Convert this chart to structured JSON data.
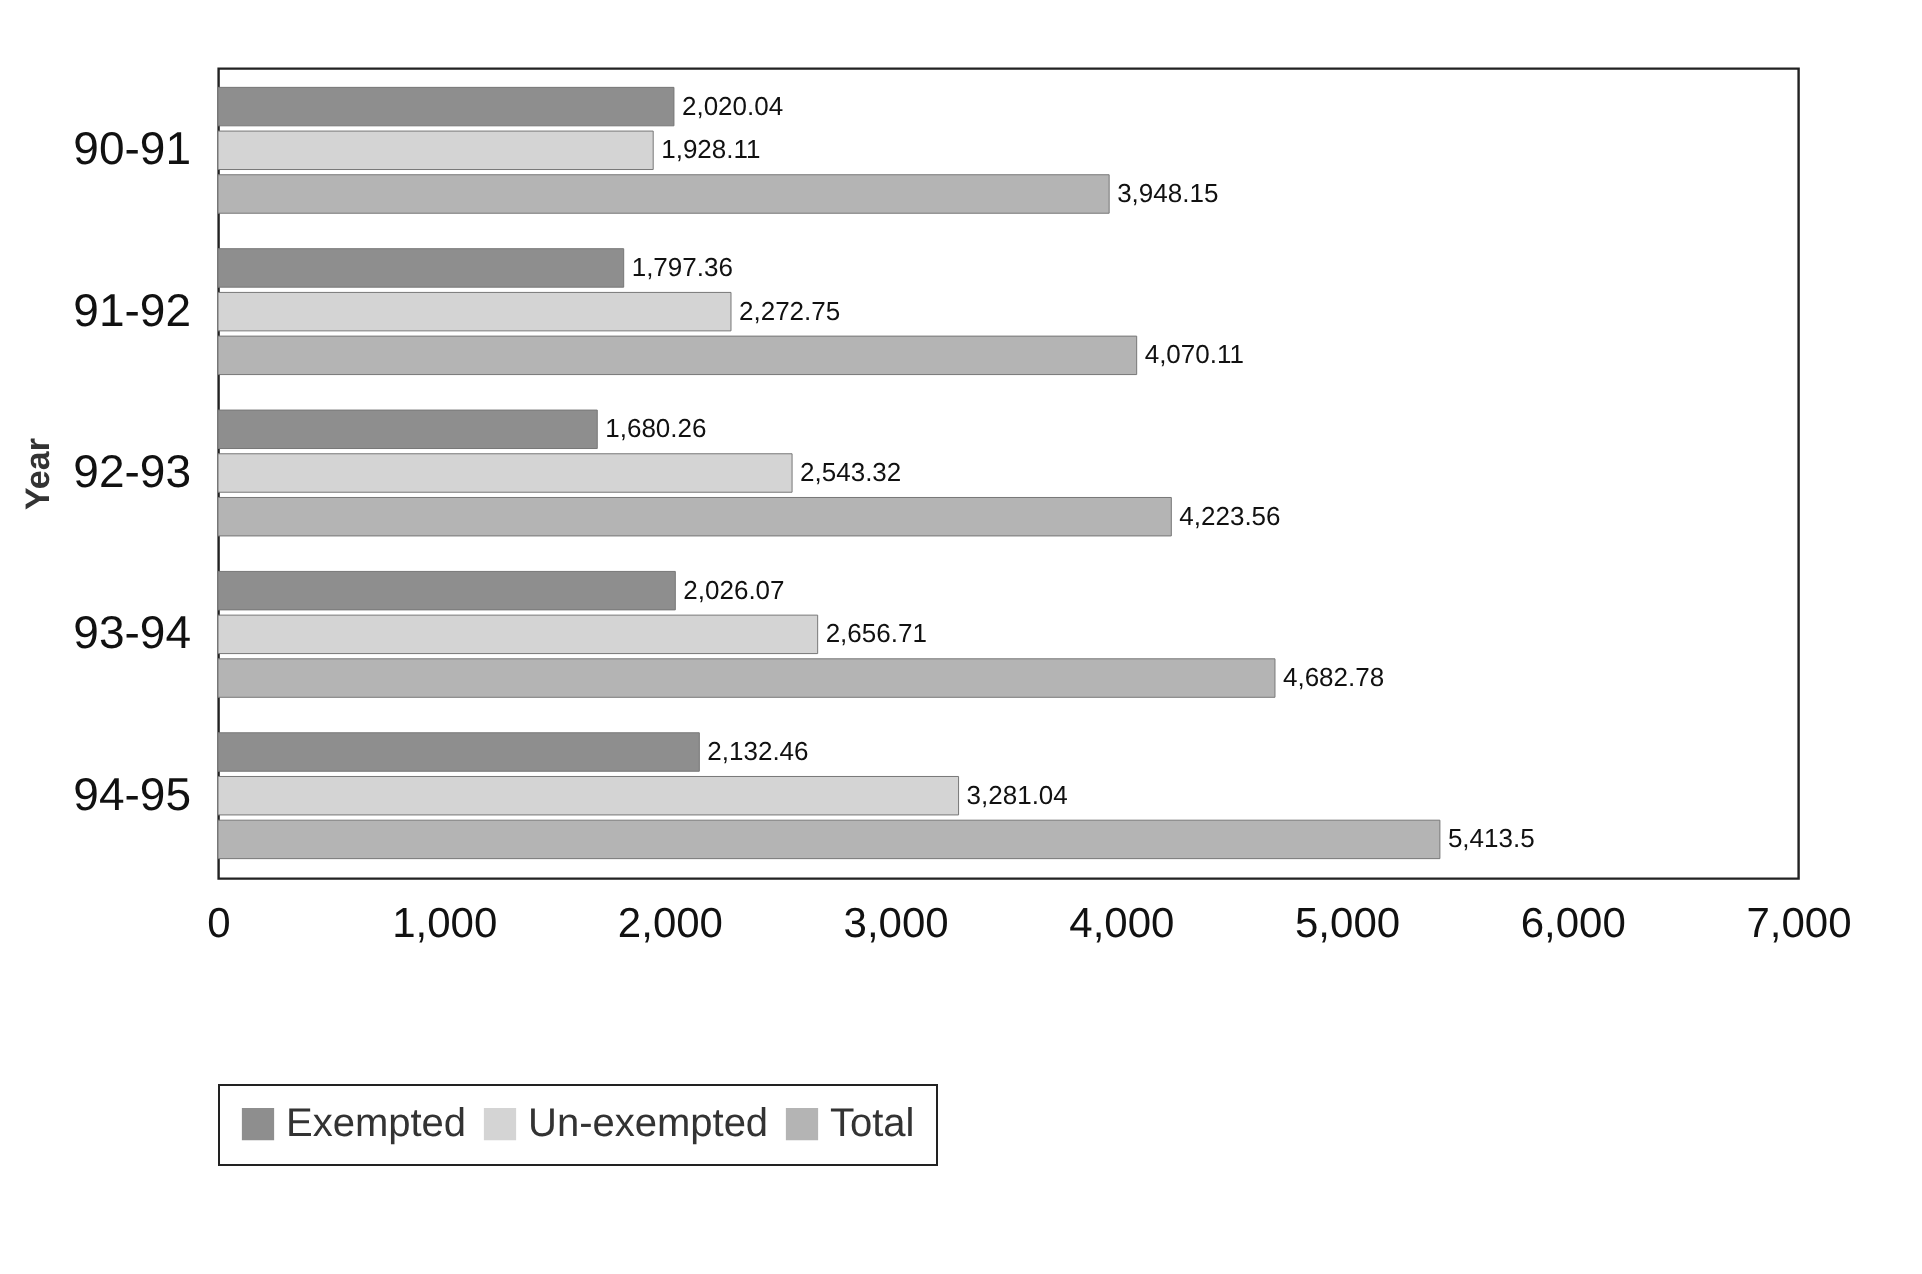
{
  "chart_data": {
    "type": "bar",
    "orientation": "horizontal",
    "ylabel": "Year",
    "categories": [
      "90-91",
      "91-92",
      "92-93",
      "93-94",
      "94-95"
    ],
    "xlim": [
      0,
      7000
    ],
    "xticks": [
      0,
      {
        "value": 1000,
        "label": "1,000"
      },
      {
        "value": 2000,
        "label": "2,000"
      },
      {
        "value": 3000,
        "label": "3,000"
      },
      {
        "value": 4000,
        "label": "4,000"
      },
      {
        "value": 5000,
        "label": "5,000"
      },
      {
        "value": 6000,
        "label": "6,000"
      },
      {
        "value": 7000,
        "label": "7,000"
      }
    ],
    "legend": "bottom",
    "series": [
      {
        "name": "Exempted",
        "color": "#8e8e8e",
        "values": [
          2020.04,
          1797.36,
          1680.26,
          2026.07,
          2132.46
        ],
        "value_labels": [
          "2,020.04",
          "1,797.36",
          "1,680.26",
          "2,026.07",
          "2,132.46"
        ]
      },
      {
        "name": "Un-exempted",
        "color": "#d4d4d4",
        "values": [
          1928.11,
          2272.75,
          2543.32,
          2656.71,
          3281.04
        ],
        "value_labels": [
          "1,928.11",
          "2,272.75",
          "2,543.32",
          "2,656.71",
          "3,281.04"
        ]
      },
      {
        "name": "Total",
        "color": "#b4b4b4",
        "values": [
          3948.15,
          4070.11,
          4223.56,
          4682.78,
          5413.5
        ],
        "value_labels": [
          "3,948.15",
          "4,070.11",
          "4,223.56",
          "4,682.78",
          "5,413.5"
        ]
      }
    ]
  }
}
